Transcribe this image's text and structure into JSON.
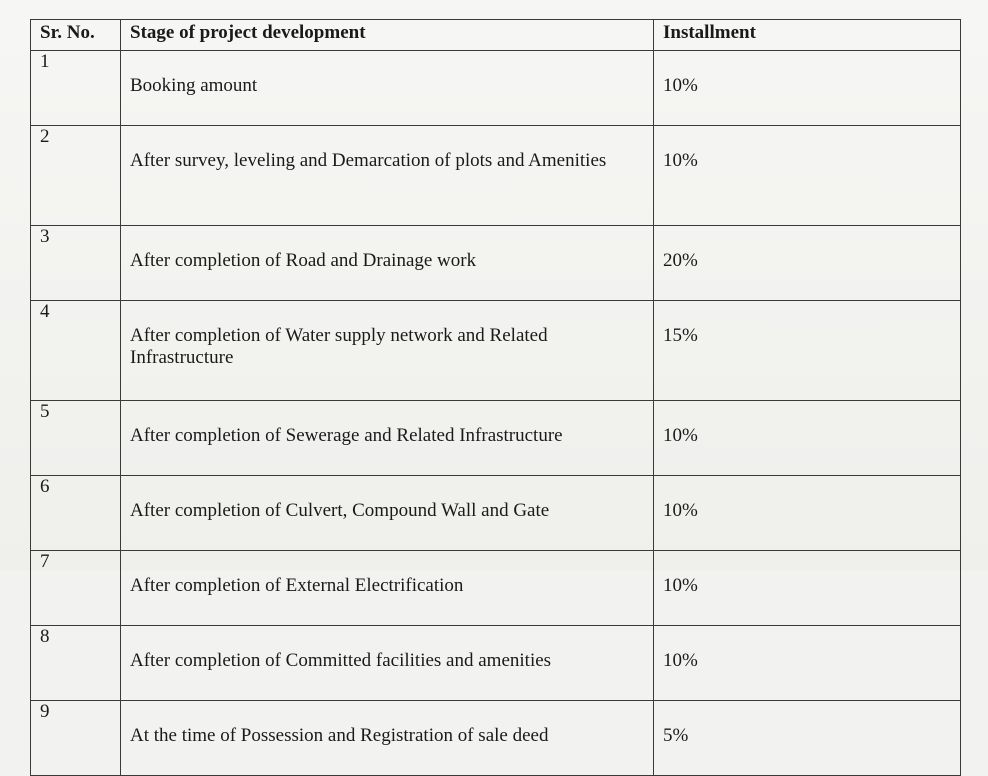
{
  "table": {
    "headers": {
      "sr_no": "Sr. No.",
      "stage": "Stage of project development",
      "installment": "Installment"
    },
    "rows": [
      {
        "sr": "1",
        "stage": "Booking amount",
        "installment": "10%"
      },
      {
        "sr": "2",
        "stage": "After survey, leveling and Demarcation of plots and Amenities",
        "installment": "10%"
      },
      {
        "sr": "3",
        "stage": "After completion of Road and Drainage work",
        "installment": "20%"
      },
      {
        "sr": "4",
        "stage": "After completion of Water supply network and Related Infrastructure",
        "installment": "15%"
      },
      {
        "sr": "5",
        "stage": "After completion of Sewerage and Related Infrastructure",
        "installment": "10%"
      },
      {
        "sr": "6",
        "stage": "After completion of Culvert, Compound Wall and Gate",
        "installment": "10%"
      },
      {
        "sr": "7",
        "stage": "After completion of External Electrification",
        "installment": "10%"
      },
      {
        "sr": "8",
        "stage": "After completion of Committed facilities and amenities",
        "installment": "10%"
      },
      {
        "sr": "9",
        "stage": "At the time of Possession and Registration of sale deed",
        "installment": "5%"
      }
    ]
  }
}
